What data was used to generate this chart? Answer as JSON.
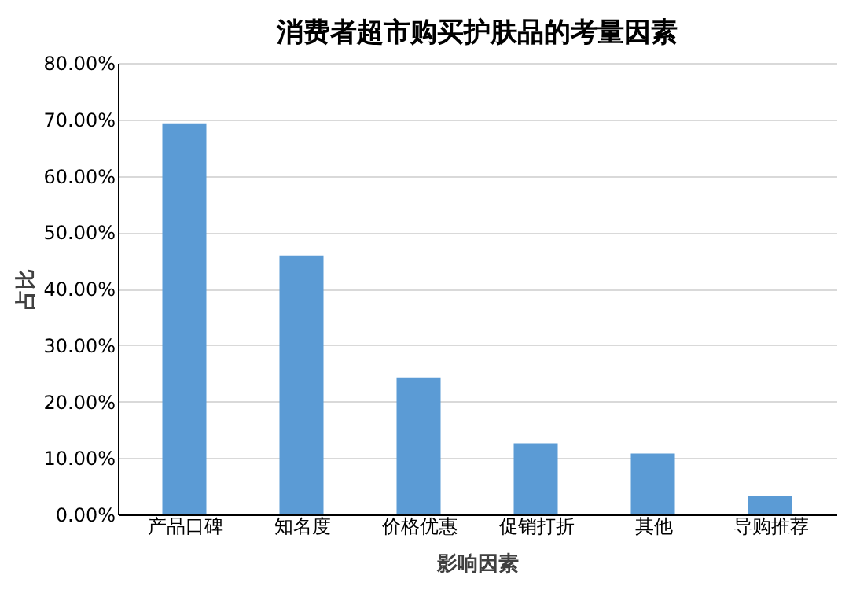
{
  "chart_data": {
    "type": "bar",
    "title": "消费者超市购买护肤品的考量因素",
    "xlabel": "影响因素",
    "ylabel": "占比",
    "categories": [
      "产品口碑",
      "知名度",
      "价格优惠",
      "促销打折",
      "其他",
      "导购推荐"
    ],
    "values": [
      69.3,
      45.9,
      24.3,
      12.6,
      10.8,
      3.2
    ],
    "color": "#5b9bd5",
    "ylim": [
      0,
      80
    ],
    "yticks": [
      {
        "value": 0,
        "label": "0.00%"
      },
      {
        "value": 10,
        "label": "10.00%"
      },
      {
        "value": 20,
        "label": "20.00%"
      },
      {
        "value": 30,
        "label": "30.00%"
      },
      {
        "value": 40,
        "label": "40.00%"
      },
      {
        "value": 50,
        "label": "50.00%"
      },
      {
        "value": 60,
        "label": "60.00%"
      },
      {
        "value": 70,
        "label": "70.00%"
      },
      {
        "value": 80,
        "label": "80.00%"
      }
    ],
    "grid": "y"
  }
}
